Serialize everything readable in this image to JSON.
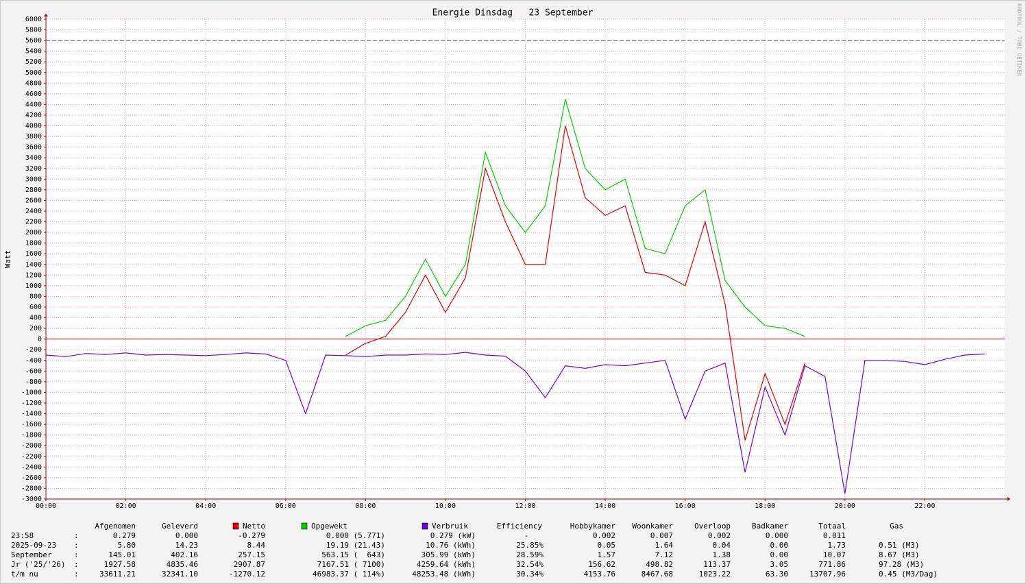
{
  "chart_data": {
    "type": "line",
    "title": "Energie Dinsdag   23 September",
    "y_label": "Watt",
    "side_label": "RRDTOOL / TOBI OETIKER",
    "x": [
      0,
      0.5,
      1,
      1.5,
      2,
      2.5,
      3,
      3.5,
      4,
      4.5,
      5,
      5.5,
      6,
      6.5,
      7,
      7.5,
      8,
      8.5,
      9,
      9.5,
      10,
      10.5,
      11,
      11.5,
      12,
      12.5,
      13,
      13.5,
      14,
      14.5,
      15,
      15.5,
      16,
      16.5,
      17,
      17.5,
      18,
      18.5,
      19,
      19.5,
      20,
      20.5,
      21,
      21.5,
      22,
      22.5,
      23,
      23.5
    ],
    "xlim": [
      0,
      24
    ],
    "xticks": [
      {
        "value": 0,
        "label": "00:00"
      },
      {
        "value": 2,
        "label": "02:00"
      },
      {
        "value": 4,
        "label": "04:00"
      },
      {
        "value": 6,
        "label": "06:00"
      },
      {
        "value": 8,
        "label": "08:00"
      },
      {
        "value": 10,
        "label": "10:00"
      },
      {
        "value": 12,
        "label": "12:00"
      },
      {
        "value": 14,
        "label": "14:00"
      },
      {
        "value": 16,
        "label": "16:00"
      },
      {
        "value": 18,
        "label": "18:00"
      },
      {
        "value": 20,
        "label": "20:00"
      },
      {
        "value": 22,
        "label": "22:00"
      }
    ],
    "ylim": [
      -3000,
      6000
    ],
    "yticks": [
      -3000,
      -2800,
      -2600,
      -2400,
      -2200,
      -2000,
      -1800,
      -1600,
      -1400,
      -1200,
      -1000,
      -800,
      -600,
      -400,
      -200,
      0,
      200,
      400,
      600,
      800,
      1000,
      1200,
      1400,
      1600,
      1800,
      2000,
      2200,
      2400,
      2600,
      2800,
      3000,
      3200,
      3400,
      3600,
      3800,
      4000,
      4200,
      4400,
      4600,
      4800,
      5000,
      5200,
      5400,
      5600,
      5800,
      6000
    ],
    "grid": true,
    "hline": 5600,
    "series": [
      {
        "name": "Netto",
        "color": "#e00000",
        "values": [
          null,
          null,
          null,
          null,
          null,
          null,
          null,
          null,
          null,
          null,
          null,
          null,
          null,
          null,
          null,
          -300,
          -80,
          50,
          500,
          1200,
          500,
          1150,
          3200,
          2200,
          1400,
          1400,
          4000,
          2650,
          2320,
          2500,
          1250,
          1200,
          1000,
          2200,
          650,
          -1900,
          -650,
          -1600,
          -450,
          null,
          null,
          null,
          null,
          null,
          null,
          null,
          null,
          null
        ]
      },
      {
        "name": "Opgewekt",
        "color": "#00d000",
        "values": [
          null,
          null,
          null,
          null,
          null,
          null,
          null,
          null,
          null,
          null,
          null,
          null,
          null,
          null,
          null,
          50,
          250,
          350,
          800,
          1500,
          800,
          1400,
          3500,
          2500,
          2000,
          2500,
          4500,
          3200,
          2800,
          3000,
          1700,
          1600,
          2500,
          2800,
          1100,
          600,
          250,
          200,
          50,
          null,
          null,
          null,
          null,
          null,
          null,
          null,
          null,
          null
        ]
      },
      {
        "name": "Verbruik",
        "color": "#7000e0",
        "values": [
          -300,
          -330,
          -270,
          -290,
          -260,
          -300,
          -290,
          -300,
          -310,
          -290,
          -260,
          -280,
          -400,
          -1400,
          -300,
          -310,
          -330,
          -300,
          -300,
          -280,
          -290,
          -250,
          -300,
          -320,
          -600,
          -1100,
          -500,
          -550,
          -480,
          -500,
          -450,
          -400,
          -1500,
          -600,
          -450,
          -2500,
          -900,
          -1800,
          -500,
          -700,
          -2900,
          -400,
          -400,
          -420,
          -480,
          -380,
          -300,
          -280
        ]
      }
    ]
  },
  "table": {
    "columns": [
      "Afgenomen",
      "Geleverd",
      "Efficiency",
      "Hobbykamer",
      "Woonkamer",
      "Overloop",
      "Badkamer",
      "Totaal",
      "Gas"
    ],
    "separator": ":",
    "rows": [
      {
        "label": "23:58",
        "cells": [
          "0.279",
          "0.000",
          "-0.279",
          "0.000 (5.771)",
          "0.279 (kW)",
          "-",
          "0.002",
          "0.007",
          "0.002",
          "0.000",
          "0.011"
        ]
      },
      {
        "label": "2025-09-23",
        "cells": [
          "5.80",
          "14.23",
          "8.44",
          "19.19 (21.43)",
          "10.76 (kWh)",
          "25.85%",
          "0.05",
          "1.64",
          "0.04",
          "0.00",
          "1.73",
          "0.51 (M3)"
        ]
      },
      {
        "label": "September",
        "cells": [
          "145.01",
          "402.16",
          "257.15",
          "563.15 (  643)",
          "305.99 (kWh)",
          "28.59%",
          "1.57",
          "7.12",
          "1.38",
          "0.00",
          "10.07",
          "8.67 (M3)"
        ]
      },
      {
        "label": "Jr ('25/'26)",
        "cells": [
          "1927.58",
          "4835.46",
          "2907.87",
          "7167.51 ( 7100)",
          "4259.64 (kWh)",
          "32.54%",
          "156.62",
          "498.82",
          "113.37",
          "3.05",
          "771.86",
          "97.28 (M3)"
        ]
      },
      {
        "label": "t/m nu",
        "cells": [
          "33611.21",
          "32341.10",
          "-1270.12",
          "46983.37 ( 114%)",
          "48253.48 (kWh)",
          "30.34%",
          "4153.76",
          "8467.68",
          "1023.22",
          "63.30",
          "13707.96",
          "0.45 (M3/Dag)"
        ]
      }
    ]
  }
}
